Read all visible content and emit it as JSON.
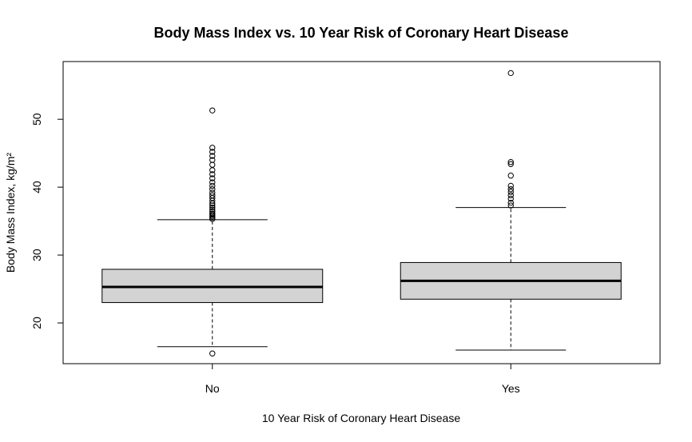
{
  "chart_data": {
    "type": "boxplot",
    "title": "Body Mass Index vs. 10 Year Risk of Coronary Heart Disease",
    "xlabel": "10 Year Risk of Coronary Heart Disease",
    "ylabel": "Body Mass Index, kg/m²",
    "categories": [
      "No",
      "Yes"
    ],
    "yticks": [
      20,
      30,
      40,
      50
    ],
    "ylim": [
      14,
      58.5
    ],
    "grid": false,
    "box_fill": "#d3d3d3",
    "boxes": [
      {
        "category": "No",
        "whisker_low": 16.5,
        "q1": 23.0,
        "median": 25.3,
        "q3": 27.9,
        "whisker_high": 35.2,
        "outliers": [
          15.5,
          35.3,
          35.5,
          35.7,
          35.9,
          36.1,
          36.4,
          36.7,
          37.0,
          37.3,
          37.6,
          38.0,
          38.4,
          38.8,
          39.2,
          39.7,
          40.2,
          40.7,
          41.3,
          41.9,
          42.5,
          43.3,
          44.0,
          44.6,
          45.2,
          45.8,
          51.3
        ]
      },
      {
        "category": "Yes",
        "whisker_low": 16.0,
        "q1": 23.5,
        "median": 26.2,
        "q3": 28.9,
        "whisker_high": 37.0,
        "outliers": [
          37.3,
          37.7,
          38.3,
          38.8,
          39.3,
          39.7,
          40.2,
          41.7,
          43.4,
          43.7,
          56.8
        ]
      }
    ]
  }
}
